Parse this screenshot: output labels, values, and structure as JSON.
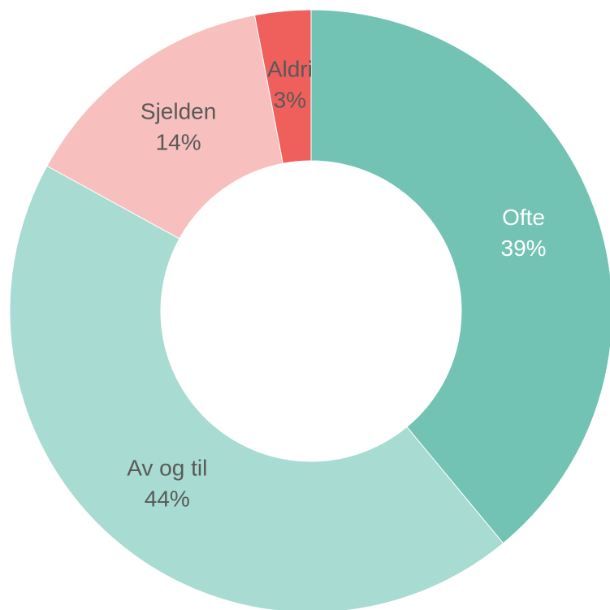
{
  "chart_data": {
    "type": "donut",
    "categories": [
      "Ofte",
      "Av og til",
      "Sjelden",
      "Aldri"
    ],
    "values": [
      39,
      44,
      14,
      3
    ],
    "value_labels": [
      "39%",
      "44%",
      "14%",
      "3%"
    ],
    "colors": [
      "#72c3b4",
      "#a8dbd1",
      "#f7bfbd",
      "#ef5f5c"
    ],
    "label_colors": [
      "#ffffff",
      "#595959",
      "#595959",
      "#595959"
    ]
  }
}
